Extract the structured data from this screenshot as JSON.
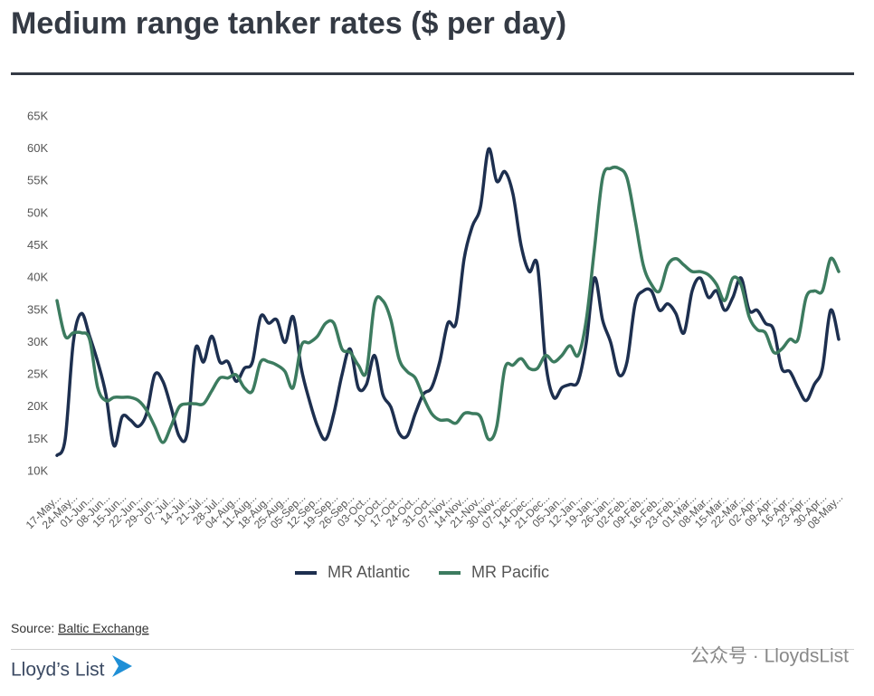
{
  "chart_data": {
    "type": "line",
    "title": "Medium range tanker rates ($ per day)",
    "source_label": "Source: ",
    "source_link": "Baltic Exchange",
    "brand": "Lloyd’s List",
    "watermark": "公众号 · LloydsList",
    "legend": "bottom",
    "grid": false,
    "categories": [
      "17-May...",
      null,
      "24-May...",
      null,
      "01-Jun...",
      null,
      "08-Jun...",
      null,
      "15-Jun...",
      null,
      "22-Jun...",
      null,
      "29-Jun...",
      null,
      "07-Jul...",
      null,
      "14-Jul...",
      null,
      "21-Jul...",
      null,
      "28-Jul...",
      null,
      "04-Aug...",
      null,
      "11-Aug...",
      null,
      "18-Aug...",
      null,
      "25-Aug...",
      null,
      "05-Sep...",
      null,
      "12-Sep...",
      null,
      "19-Sep...",
      null,
      "26-Sep...",
      null,
      "03-Oct...",
      null,
      "10-Oct...",
      null,
      "17-Oct...",
      null,
      "24-Oct...",
      null,
      "31-Oct...",
      null,
      "07-Nov...",
      null,
      "14-Nov...",
      null,
      "21-Nov...",
      null,
      "30-Nov...",
      null,
      "07-Dec...",
      null,
      "14-Dec...",
      null,
      "21-Dec...",
      null,
      "05-Jan...",
      null,
      "12-Jan...",
      null,
      "19-Jan...",
      null,
      "26-Jan...",
      null,
      "02-Feb...",
      null,
      "09-Feb...",
      null,
      "16-Feb...",
      null,
      "23-Feb...",
      null,
      "01-Mar...",
      null,
      "08-Mar...",
      null,
      "15-Mar...",
      null,
      "22-Mar...",
      null,
      "02-Apr...",
      null,
      "09-Apr...",
      null,
      "16-Apr...",
      null,
      "23-Apr...",
      null,
      "30-Apr...",
      null,
      "08-May..."
    ],
    "series": [
      {
        "name": "MR Atlantic",
        "color": "#1d2f4f",
        "values": [
          12500,
          15000,
          30000,
          34500,
          31000,
          27000,
          22000,
          14000,
          18500,
          18000,
          17000,
          19000,
          25000,
          24000,
          20000,
          15500,
          16000,
          29000,
          27000,
          31000,
          27000,
          27000,
          24000,
          26000,
          27000,
          34000,
          33000,
          33500,
          30000,
          34000,
          26000,
          21000,
          17000,
          15000,
          19000,
          25000,
          29000,
          23000,
          23500,
          28000,
          22000,
          20000,
          16000,
          15500,
          19000,
          22000,
          23000,
          27000,
          33000,
          33000,
          43000,
          48000,
          51000,
          60000,
          55000,
          56500,
          53000,
          45000,
          41000,
          42000,
          27000,
          21500,
          23000,
          23500,
          24000,
          30000,
          40000,
          33500,
          30000,
          25000,
          27000,
          36000,
          38000,
          38000,
          35000,
          36000,
          34500,
          31500,
          38000,
          40000,
          37000,
          38000,
          35000,
          37000,
          40000,
          35000,
          35000,
          33000,
          32000,
          26000,
          25500,
          23000,
          21000,
          23500,
          26000,
          35000,
          30500
        ]
      },
      {
        "name": "MR Pacific",
        "color": "#3c7b5f",
        "values": [
          36500,
          31000,
          31500,
          31500,
          30500,
          23000,
          21000,
          21500,
          21500,
          21500,
          21000,
          19500,
          17000,
          14500,
          17000,
          20000,
          20500,
          20500,
          20500,
          22500,
          24500,
          24500,
          25000,
          23000,
          22500,
          27000,
          27000,
          26500,
          25500,
          23000,
          29500,
          30000,
          31000,
          33000,
          33000,
          29000,
          28500,
          26500,
          25500,
          36000,
          36500,
          33500,
          27500,
          25500,
          24500,
          21500,
          19000,
          18000,
          18000,
          17500,
          19000,
          19000,
          18500,
          15000,
          17000,
          26000,
          26500,
          27500,
          26000,
          26000,
          28000,
          27000,
          28000,
          29500,
          28000,
          33500,
          44500,
          55500,
          57000,
          57000,
          55500,
          49000,
          42000,
          39000,
          38000,
          42000,
          43000,
          42000,
          41000,
          41000,
          40500,
          39000,
          36500,
          40000,
          39000,
          34000,
          32000,
          31500,
          28500,
          29000,
          30500,
          30500,
          37000,
          38000,
          38000,
          43000,
          41000
        ]
      }
    ],
    "ylim": [
      10000,
      65000
    ],
    "yticks": [
      {
        "value": 10000,
        "label": "10K"
      },
      {
        "value": 15000,
        "label": "15K"
      },
      {
        "value": 20000,
        "label": "20K"
      },
      {
        "value": 25000,
        "label": "25K"
      },
      {
        "value": 30000,
        "label": "30K"
      },
      {
        "value": 35000,
        "label": "35K"
      },
      {
        "value": 40000,
        "label": "40K"
      },
      {
        "value": 45000,
        "label": "45K"
      },
      {
        "value": 50000,
        "label": "50K"
      },
      {
        "value": 55000,
        "label": "55K"
      },
      {
        "value": 60000,
        "label": "60K"
      },
      {
        "value": 65000,
        "label": "65K"
      }
    ]
  }
}
